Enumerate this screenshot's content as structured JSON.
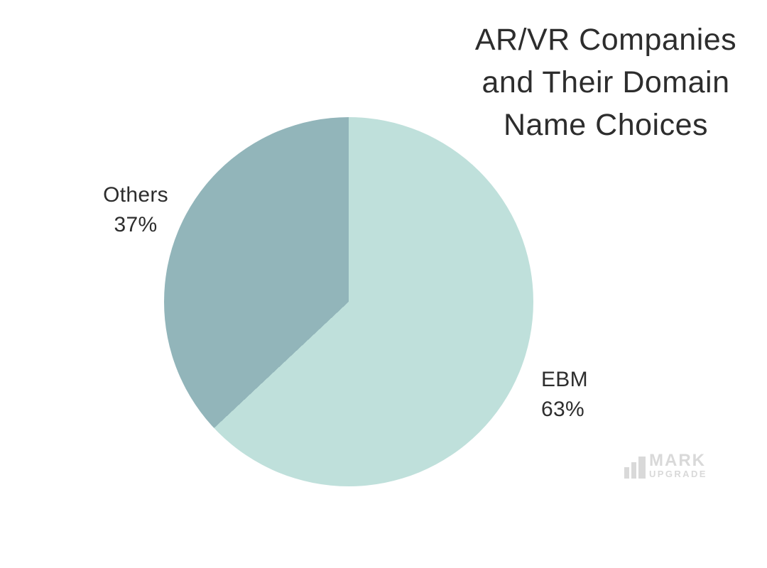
{
  "chart_data": {
    "type": "pie",
    "title": "AR/VR Companies and Their Domain Name Choices",
    "title_lines": [
      "AR/VR Companies",
      "and Their Domain",
      "Name Choices"
    ],
    "segments": [
      {
        "label": "EBM",
        "value": 63,
        "pct_text": "63%",
        "color": "#bfe0db",
        "label_position": "right"
      },
      {
        "label": "Others",
        "value": 37,
        "pct_text": "37%",
        "color": "#92b5ba",
        "label_position": "left"
      }
    ],
    "start_angle_deg": 0,
    "direction": "clockwise",
    "legend_position": "none",
    "labels_outside": true,
    "background": "#ffffff",
    "title_color": "#2d2d2d",
    "label_color": "#2d2d2d"
  },
  "watermark": {
    "icon": "bar-chart-icon",
    "brand_top": "MARK",
    "brand_bottom": "UPGRADE",
    "color": "#d9d9d9"
  }
}
